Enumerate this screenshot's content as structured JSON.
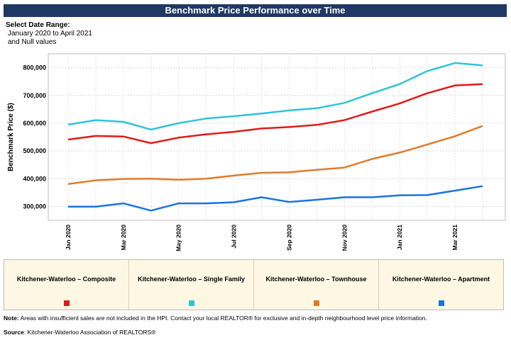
{
  "title": "Benchmark Price Performance over Time",
  "range": {
    "label": "Select Date Range:",
    "line1": "January 2020 to April 2021",
    "line2": "and Null values"
  },
  "chart_data": {
    "type": "line",
    "ylabel": "Benchmark Price ($)",
    "ylim": [
      250000,
      850000
    ],
    "yticks": [
      300000,
      400000,
      500000,
      600000,
      700000,
      800000
    ],
    "ytick_labels": [
      "300,000",
      "400,000",
      "500,000",
      "600,000",
      "700,000",
      "800,000"
    ],
    "x": [
      "Jan 2020",
      "Feb 2020",
      "Mar 2020",
      "Apr 2020",
      "May 2020",
      "Jun 2020",
      "Jul 2020",
      "Aug 2020",
      "Sep 2020",
      "Oct 2020",
      "Nov 2020",
      "Dec 2020",
      "Jan 2021",
      "Feb 2021",
      "Mar 2021",
      "Apr 2021"
    ],
    "xtick_labels": [
      "Jan 2020",
      "Mar 2020",
      "May 2020",
      "Jul 2020",
      "Sep 2020",
      "Nov 2020",
      "Jan 2021",
      "Mar 2021"
    ],
    "grid": true,
    "series": [
      {
        "name": "Kitchener-Waterloo – Composite",
        "color": "#e01a1a",
        "values": [
          541000,
          554000,
          552000,
          528000,
          548000,
          560000,
          569000,
          581000,
          586000,
          594000,
          611000,
          642000,
          671000,
          708000,
          736000,
          741000
        ]
      },
      {
        "name": "Kitchener-Waterloo – Single Family",
        "color": "#2ec4d6",
        "values": [
          595000,
          611000,
          605000,
          577000,
          600000,
          617000,
          625000,
          635000,
          646000,
          654000,
          673000,
          708000,
          741000,
          788000,
          817000,
          808000
        ]
      },
      {
        "name": "Kitchener-Waterloo – Townhouse",
        "color": "#e07b2a",
        "values": [
          381000,
          394000,
          399000,
          400000,
          396000,
          400000,
          411000,
          421000,
          423000,
          432000,
          440000,
          471000,
          494000,
          523000,
          553000,
          590000
        ]
      },
      {
        "name": "Kitchener-Waterloo – Apartment",
        "color": "#1a74e0",
        "values": [
          299000,
          299000,
          311000,
          285000,
          311000,
          311000,
          315000,
          333000,
          316000,
          324000,
          333000,
          333000,
          340000,
          341000,
          357000,
          373000
        ]
      }
    ]
  },
  "legend": [
    {
      "label": "Kitchener-Waterloo – Composite",
      "color": "#e01a1a"
    },
    {
      "label": "Kitchener-Waterloo – Single Family",
      "color": "#2ec4d6"
    },
    {
      "label": "Kitchener-Waterloo – Townhouse",
      "color": "#e07b2a"
    },
    {
      "label": "Kitchener-Waterloo – Apartment",
      "color": "#1a74e0"
    }
  ],
  "note": {
    "label": "Note:",
    "text": " Areas with insufficient sales are not included in the HPI. Contact your local REALTOR® for exclusive and in-depth neighbourhood level price information."
  },
  "source": {
    "label": "Source",
    "text": ": Kitchener-Waterloo Association of REALTORS®"
  }
}
